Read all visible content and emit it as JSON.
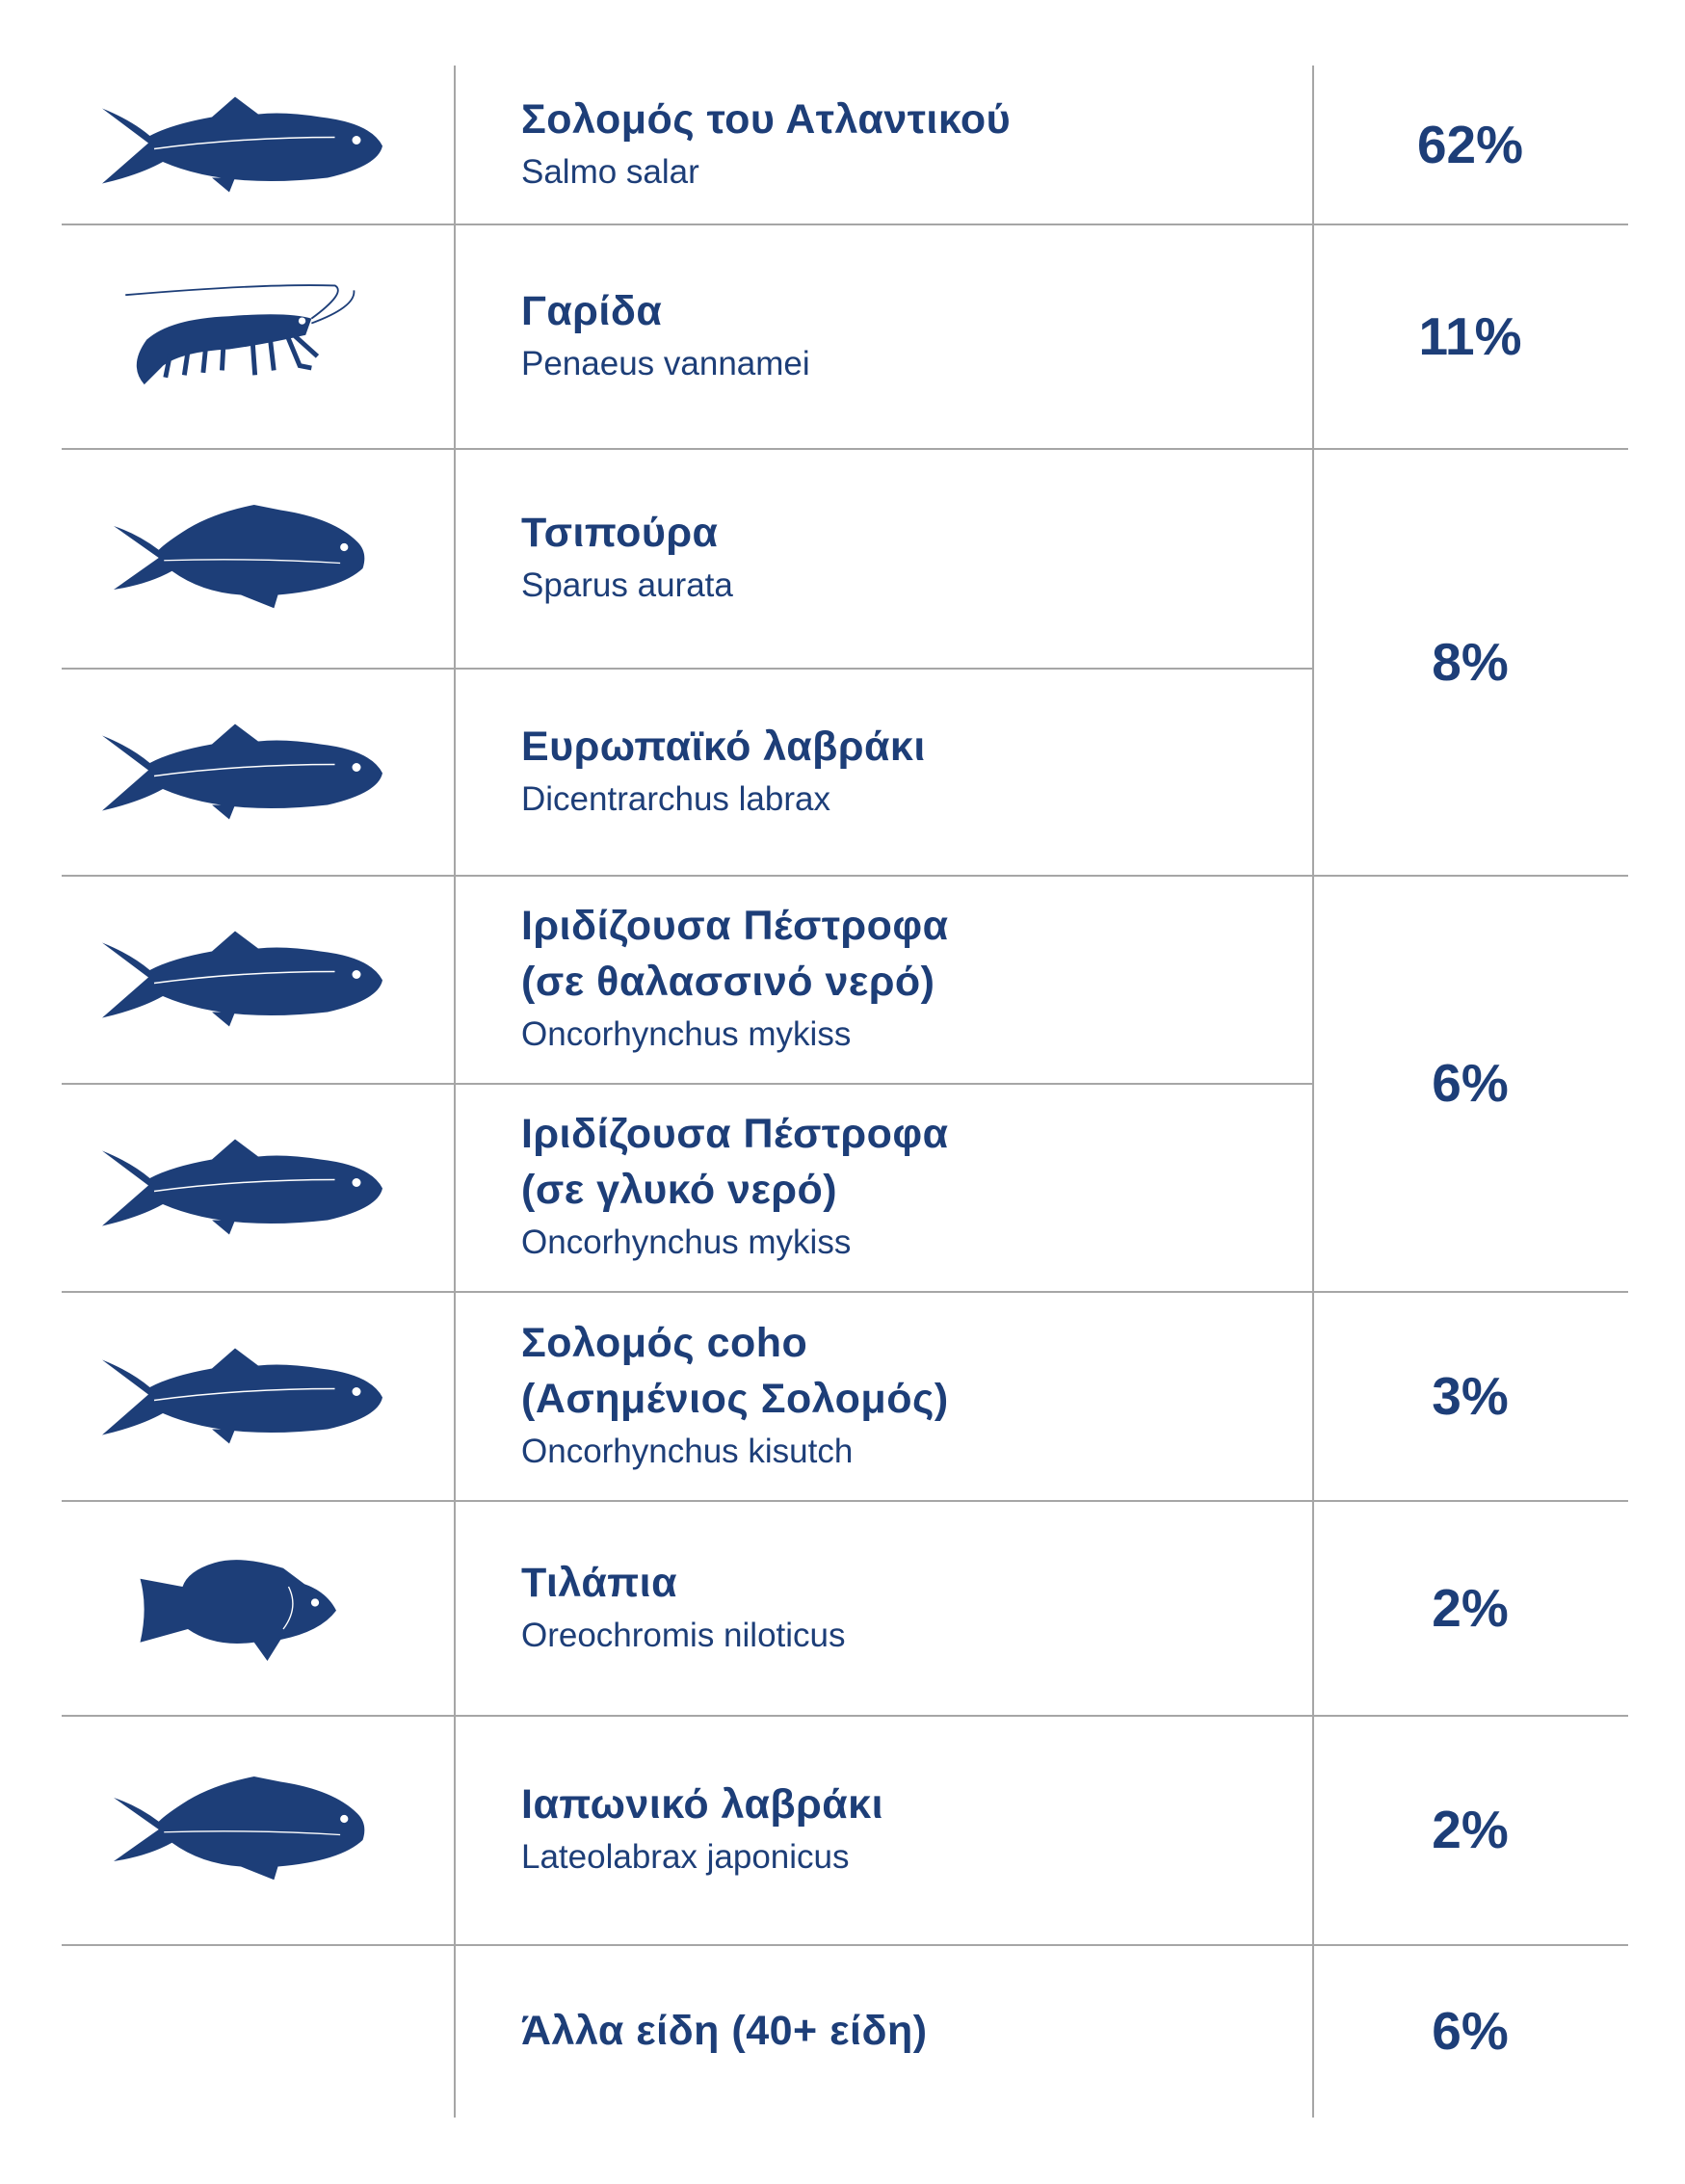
{
  "table": {
    "groups": [
      {
        "share": "62%",
        "species": [
          {
            "name": [
              "Σολομός του Ατλαντικού"
            ],
            "scientific": "Salmo salar"
          }
        ]
      },
      {
        "share": "11%",
        "species": [
          {
            "name": [
              "Γαρίδα"
            ],
            "scientific": "Penaeus vannamei"
          }
        ]
      },
      {
        "share": "8%",
        "species": [
          {
            "name": [
              "Τσιπούρα"
            ],
            "scientific": "Sparus aurata"
          },
          {
            "name": [
              "Ευρωπαϊκό λαβράκι"
            ],
            "scientific": "Dicentrarchus labrax"
          }
        ]
      },
      {
        "share": "6%",
        "species": [
          {
            "name": [
              "Ιριδίζουσα Πέστροφα",
              "(σε θαλασσινό νερό)"
            ],
            "scientific": "Oncorhynchus mykiss"
          },
          {
            "name": [
              "Ιριδίζουσα Πέστροφα",
              "(σε γλυκό νερό)"
            ],
            "scientific": "Oncorhynchus mykiss"
          }
        ]
      },
      {
        "share": "3%",
        "species": [
          {
            "name": [
              "Σολομός coho",
              "(Ασημένιος Σολομός)"
            ],
            "scientific": "Oncorhynchus kisutch"
          }
        ]
      },
      {
        "share": "2%",
        "species": [
          {
            "name": [
              "Τιλάπια"
            ],
            "scientific": "Oreochromis niloticus"
          }
        ]
      },
      {
        "share": "2%",
        "species": [
          {
            "name": [
              "Ιαπωνικό λαβράκι"
            ],
            "scientific": "Lateolabrax japonicus"
          }
        ]
      },
      {
        "share": "6%",
        "species": [
          {
            "name": [
              "Άλλα είδη (40+ είδη)"
            ]
          }
        ]
      }
    ]
  }
}
